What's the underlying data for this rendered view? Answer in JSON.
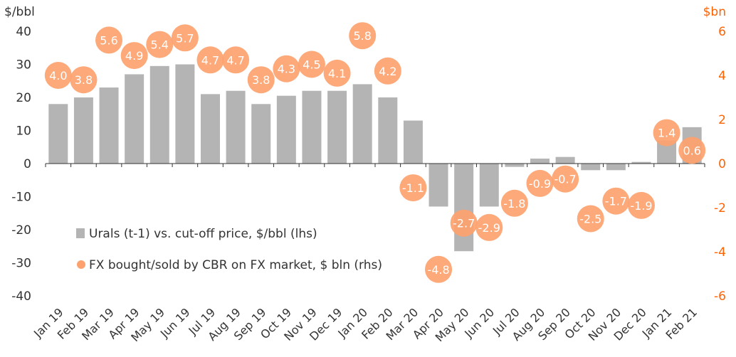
{
  "chart_data": {
    "type": "bar",
    "left_axis_unit": "$/bbl",
    "right_axis_unit": "$bn",
    "categories": [
      "Jan 19",
      "Feb 19",
      "Mar 19",
      "Apr 19",
      "May 19",
      "Jun 19",
      "Jul 19",
      "Aug 19",
      "Sep 19",
      "Oct 19",
      "Nov 19",
      "Dec 19",
      "Jan 20",
      "Feb 20",
      "Mar 20",
      "Apr 20",
      "May 20",
      "Jun 20",
      "Jul 20",
      "Aug 20",
      "Sep 20",
      "Oct 20",
      "Nov 20",
      "Dec 20",
      "Jan 21",
      "Feb 21"
    ],
    "left_ylim": [
      -40,
      40
    ],
    "right_ylim": [
      -6,
      6
    ],
    "left_ticks": [
      "40",
      "30",
      "20",
      "10",
      "0",
      "-10",
      "-20",
      "-30",
      "-40"
    ],
    "right_ticks": [
      "6",
      "4",
      "2",
      "0",
      "-2",
      "-4",
      "-6"
    ],
    "grid": false,
    "legend_position": "bottom-left inside",
    "series": [
      {
        "name": "Urals (t-1) vs. cut-off price, $/bbl (lhs)",
        "type": "bar",
        "axis": "left",
        "color": "#b4b4b4",
        "values": [
          18,
          20,
          23,
          27,
          29.5,
          30,
          21,
          22,
          18,
          20.5,
          22,
          22,
          24,
          20,
          13,
          -13,
          -26.5,
          -13,
          -1,
          1.5,
          2,
          -2,
          -2,
          0.5,
          7,
          11
        ]
      },
      {
        "name": "FX bought/sold by CBR on FX market, $ bln (rhs)",
        "type": "bubble",
        "axis": "right",
        "color": "#FDA26E",
        "values": [
          4.0,
          3.8,
          5.6,
          4.9,
          5.4,
          5.7,
          4.7,
          4.7,
          3.8,
          4.3,
          4.5,
          4.1,
          5.8,
          4.2,
          -1.1,
          -4.8,
          -2.7,
          -2.9,
          -1.8,
          -0.9,
          -0.7,
          -2.5,
          -1.7,
          -1.9,
          1.4,
          0.6
        ],
        "labels": [
          "4.0",
          "3.8",
          "5.6",
          "4.9",
          "5.4",
          "5.7",
          "4.7",
          "4.7",
          "3.8",
          "4.3",
          "4.5",
          "4.1",
          "5.8",
          "4.2",
          "-1.1",
          "-4.8",
          "-2.7",
          "-2.9",
          "-1.8",
          "-0.9",
          "-0.7",
          "-2.5",
          "-1.7",
          "-1.9",
          "1.4",
          "0.6"
        ]
      }
    ]
  }
}
